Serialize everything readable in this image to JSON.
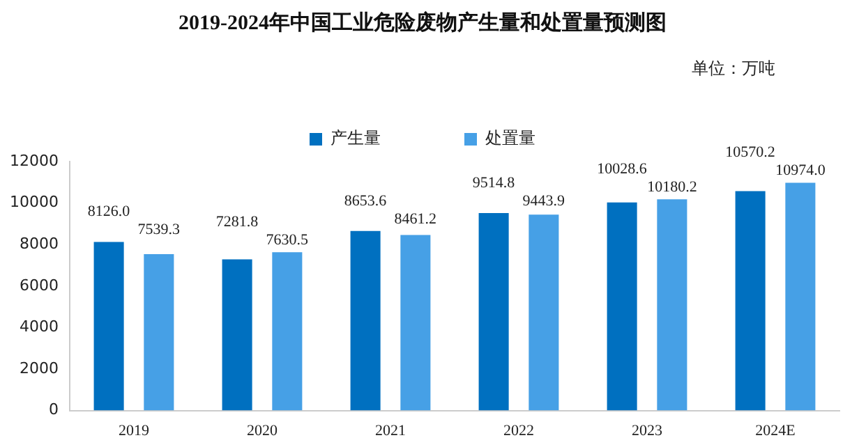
{
  "chart_data": {
    "type": "bar",
    "title": "2019-2024年中国工业危险废物产生量和处置量预测图",
    "categories": [
      "2019",
      "2020",
      "2021",
      "2022",
      "2023",
      "2024E"
    ],
    "series": [
      {
        "name": "产生量",
        "color": "#0070c0",
        "values": [
          8126.0,
          7281.8,
          8653.6,
          9514.8,
          10028.6,
          10570.2
        ],
        "value_labels": [
          "8126.0",
          "7281.8",
          "8653.6",
          "9514.8",
          "10028.6",
          "10570.2"
        ]
      },
      {
        "name": "处置量",
        "color": "#46a0e6",
        "values": [
          7539.3,
          7630.5,
          8461.2,
          9443.9,
          10180.2,
          10974.0
        ],
        "value_labels": [
          "7539.3",
          "7630.5",
          "8461.2",
          "9443.9",
          "10180.2",
          "10974.0"
        ]
      }
    ],
    "ylim": [
      0,
      12000
    ],
    "yticks": [
      0,
      2000,
      4000,
      6000,
      8000,
      10000,
      12000
    ],
    "grid": false,
    "legend": "top",
    "annotations": [
      "单位：万吨"
    ]
  }
}
